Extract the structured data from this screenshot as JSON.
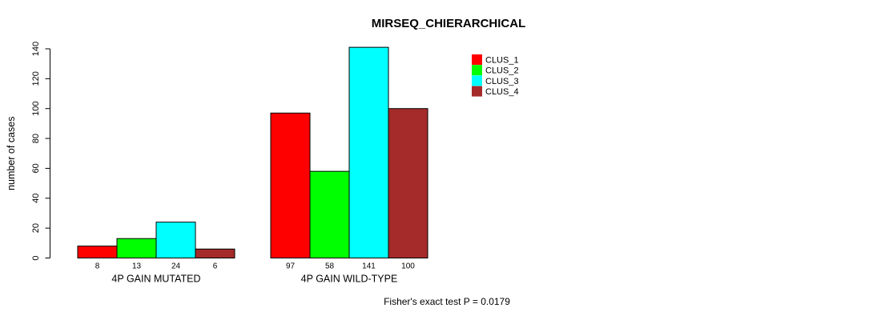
{
  "title": "MIRSEQ_CHIERARCHICAL",
  "footnote": "Fisher's exact test P = 0.0179",
  "chart_data": {
    "type": "bar",
    "title": "MIRSEQ_CHIERARCHICAL",
    "ylabel": "number of cases",
    "xlabel": "",
    "ylim": [
      0,
      140
    ],
    "yticks": [
      0,
      20,
      40,
      60,
      80,
      100,
      120,
      140
    ],
    "categories": [
      "4P GAIN MUTATED",
      "4P GAIN WILD-TYPE"
    ],
    "series": [
      {
        "name": "CLUS_1",
        "color": "#FF0000",
        "values": [
          8,
          97
        ]
      },
      {
        "name": "CLUS_2",
        "color": "#00FF00",
        "values": [
          13,
          58
        ]
      },
      {
        "name": "CLUS_3",
        "color": "#00FFFF",
        "values": [
          24,
          141
        ]
      },
      {
        "name": "CLUS_4",
        "color": "#A52A2A",
        "values": [
          6,
          100
        ]
      }
    ],
    "bar_value_labels": [
      [
        "8",
        "13",
        "24",
        "6"
      ],
      [
        "97",
        "58",
        "141",
        "100"
      ]
    ],
    "legend_position": "top-right",
    "legend_entries": [
      "CLUS_1",
      "CLUS_2",
      "CLUS_3",
      "CLUS_4"
    ],
    "grid": false,
    "annotation": "Fisher's exact test P = 0.0179",
    "bar_border_color": "#000000",
    "axis_color": "#000000"
  }
}
